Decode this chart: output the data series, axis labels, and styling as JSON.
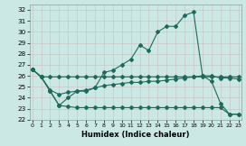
{
  "xlabel": "Humidex (Indice chaleur)",
  "bg_color": "#cce8e4",
  "grid_color": "#c8c0c0",
  "line_color": "#1a6b5a",
  "xlim": [
    -0.3,
    23.3
  ],
  "ylim": [
    22,
    32.5
  ],
  "xtick_vals": [
    0,
    1,
    2,
    3,
    4,
    5,
    6,
    7,
    8,
    9,
    10,
    11,
    12,
    13,
    14,
    15,
    16,
    17,
    18,
    19,
    20,
    21,
    22,
    23
  ],
  "ytick_vals": [
    22,
    23,
    24,
    25,
    26,
    27,
    28,
    29,
    30,
    31,
    32
  ],
  "line_A": {
    "x": [
      0,
      1,
      2,
      3,
      4,
      5,
      6,
      7,
      8,
      9,
      10,
      11,
      12,
      13,
      14,
      15,
      16,
      17,
      18,
      19,
      20,
      21,
      22,
      23
    ],
    "y": [
      26.6,
      25.9,
      25.9,
      25.9,
      25.9,
      25.9,
      25.9,
      25.9,
      25.9,
      25.9,
      25.9,
      25.9,
      25.9,
      25.9,
      25.9,
      25.9,
      25.9,
      25.9,
      25.9,
      25.9,
      25.9,
      25.9,
      25.9,
      25.9
    ]
  },
  "line_B": {
    "x": [
      0,
      1,
      2,
      3,
      4,
      5,
      6,
      7,
      8,
      9,
      10,
      11,
      12,
      13,
      14,
      15,
      16,
      17,
      18,
      19,
      20,
      21,
      22,
      23
    ],
    "y": [
      26.6,
      25.9,
      24.6,
      23.3,
      24.0,
      24.6,
      24.6,
      24.9,
      26.3,
      26.5,
      27.0,
      27.5,
      28.8,
      28.3,
      30.0,
      30.5,
      30.5,
      31.5,
      31.8,
      26.0,
      25.5,
      23.5,
      22.5,
      22.5
    ]
  },
  "line_C": {
    "x": [
      0,
      1,
      2,
      3,
      4,
      5,
      6,
      7,
      8,
      9,
      10,
      11,
      12,
      13,
      14,
      15,
      16,
      17,
      18,
      19,
      20,
      21,
      22,
      23
    ],
    "y": [
      26.6,
      25.9,
      24.7,
      24.3,
      24.5,
      24.6,
      24.7,
      24.9,
      25.1,
      25.2,
      25.3,
      25.4,
      25.4,
      25.5,
      25.5,
      25.6,
      25.7,
      25.8,
      25.9,
      26.0,
      26.0,
      25.8,
      25.8,
      25.7
    ]
  },
  "line_D": {
    "x": [
      0,
      1,
      2,
      3,
      4,
      5,
      6,
      7,
      8,
      9,
      10,
      11,
      12,
      13,
      14,
      15,
      16,
      17,
      18,
      19,
      20,
      21,
      22,
      23
    ],
    "y": [
      26.6,
      25.9,
      24.6,
      23.3,
      23.2,
      23.1,
      23.1,
      23.1,
      23.1,
      23.1,
      23.1,
      23.1,
      23.1,
      23.1,
      23.1,
      23.1,
      23.1,
      23.1,
      23.1,
      23.1,
      23.1,
      23.1,
      22.5,
      22.5
    ]
  }
}
